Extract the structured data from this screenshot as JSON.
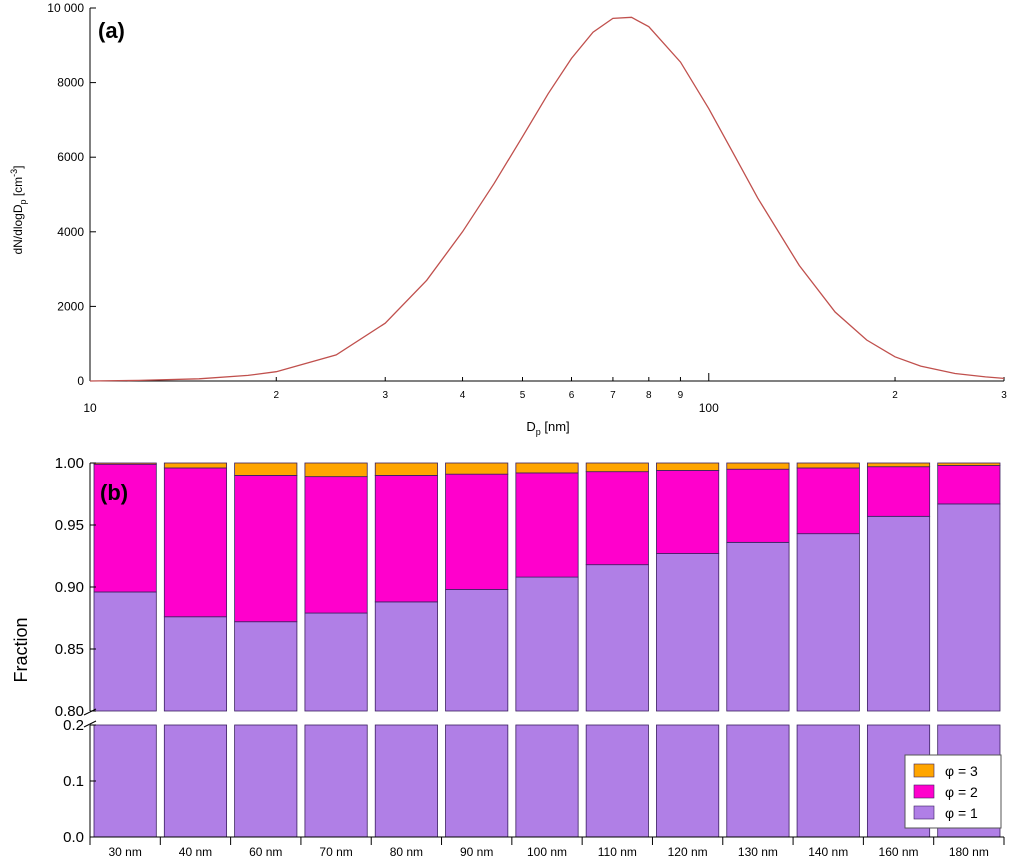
{
  "colors": {
    "curve": "#c0504d",
    "phi3": "#ffa500",
    "phi2": "#ff00cc",
    "phi1": "#b07fe6",
    "bar_edge": "#3a2060",
    "axis": "#000000"
  },
  "chart_data": [
    {
      "type": "line",
      "panel_label": "(a)",
      "xlabel": "D",
      "xlabel_sub": "p",
      "xlabel_unit": " [nm]",
      "ylabel": "dN/dlogD",
      "ylabel_sub": "p",
      "ylabel_unit": " [cm",
      "ylabel_sup": "-3",
      "ylabel_close": "]",
      "xscale": "log",
      "xlim": [
        10,
        300
      ],
      "ylim": [
        0,
        10000
      ],
      "yticks": [
        0,
        2000,
        4000,
        6000,
        8000,
        10000
      ],
      "ytick_labels": [
        "0",
        "2000",
        "4000",
        "6000",
        "8000",
        "10 000"
      ],
      "xticks_major": [
        10,
        100
      ],
      "xtick_major_labels": [
        "10",
        "100"
      ],
      "xticks_minor": [
        20,
        30,
        40,
        50,
        60,
        70,
        80,
        90,
        200,
        300
      ],
      "xtick_minor_labels": [
        "2",
        "3",
        "4",
        "5",
        "6",
        "7",
        "8",
        "9",
        "2",
        "3"
      ],
      "x": [
        10,
        12,
        15,
        18,
        20,
        25,
        30,
        35,
        40,
        45,
        50,
        55,
        60,
        65,
        70,
        75,
        80,
        90,
        100,
        110,
        120,
        140,
        160,
        180,
        200,
        220,
        250,
        280,
        300
      ],
      "y": [
        0,
        15,
        60,
        150,
        250,
        700,
        1550,
        2700,
        4000,
        5300,
        6550,
        7700,
        8650,
        9350,
        9720,
        9750,
        9500,
        8550,
        7300,
        6050,
        4900,
        3100,
        1850,
        1100,
        650,
        400,
        200,
        110,
        70
      ]
    },
    {
      "type": "bar",
      "stacked": true,
      "broken_axis": true,
      "panel_label": "(b)",
      "ylabel": "Fraction",
      "ylim_upper": [
        0.8,
        1.0
      ],
      "ylim_lower": [
        0.0,
        0.2
      ],
      "yticks_upper": [
        0.8,
        0.85,
        0.9,
        0.95,
        1.0
      ],
      "ytick_labels_upper": [
        "0.80",
        "0.85",
        "0.90",
        "0.95",
        "1.00"
      ],
      "yticks_lower": [
        0.0,
        0.1,
        0.2
      ],
      "ytick_labels_lower": [
        "0.0",
        "0.1",
        "0.2"
      ],
      "categories": [
        "30 nm",
        "40 nm",
        "60 nm",
        "70 nm",
        "80 nm",
        "90 nm",
        "100 nm",
        "110 nm",
        "120 nm",
        "130 nm",
        "140 nm",
        "160 nm",
        "180 nm"
      ],
      "series": [
        {
          "name": "φ = 1",
          "values": [
            0.896,
            0.876,
            0.872,
            0.879,
            0.888,
            0.898,
            0.908,
            0.918,
            0.927,
            0.936,
            0.943,
            0.957,
            0.967
          ]
        },
        {
          "name": "φ = 2",
          "values": [
            0.103,
            0.12,
            0.118,
            0.11,
            0.102,
            0.093,
            0.084,
            0.075,
            0.067,
            0.059,
            0.053,
            0.04,
            0.031
          ]
        },
        {
          "name": "φ = 3",
          "values": [
            0.001,
            0.004,
            0.01,
            0.011,
            0.01,
            0.009,
            0.008,
            0.007,
            0.006,
            0.005,
            0.004,
            0.003,
            0.002
          ]
        }
      ],
      "legend_position": "bottom-right"
    }
  ]
}
